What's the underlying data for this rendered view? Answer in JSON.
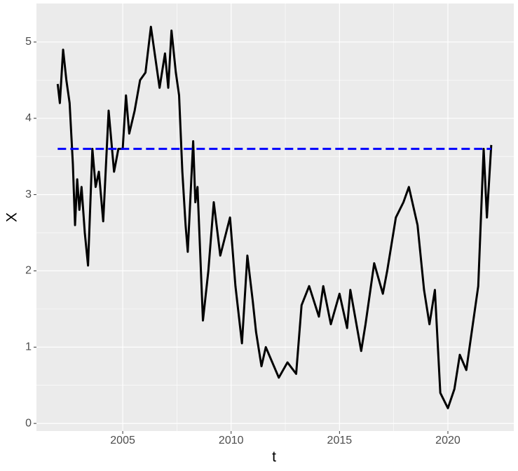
{
  "chart_data": {
    "type": "line",
    "x_label": "t",
    "y_label": "X",
    "xlim": [
      2001.02,
      2023.04
    ],
    "ylim": [
      -0.1,
      5.505
    ],
    "xticks": [
      2005,
      2010,
      2015,
      2020
    ],
    "yticks": [
      0,
      1,
      2,
      3,
      4,
      5
    ],
    "grid": true,
    "series": [
      {
        "color": "#000000",
        "dash": false,
        "x": [
          2002.0,
          2002.1,
          2002.25,
          2002.4,
          2002.55,
          2002.7,
          2002.8,
          2002.9,
          2003.0,
          2003.1,
          2003.25,
          2003.4,
          2003.6,
          2003.75,
          2003.9,
          2004.1,
          2004.35,
          2004.6,
          2004.8,
          2005.0,
          2005.15,
          2005.3,
          2005.55,
          2005.8,
          2006.05,
          2006.3,
          2006.5,
          2006.7,
          2006.95,
          2007.1,
          2007.25,
          2007.45,
          2007.6,
          2007.75,
          2007.9,
          2008.0,
          2008.25,
          2008.35,
          2008.45,
          2008.7,
          2008.95,
          2009.2,
          2009.5,
          2009.95,
          2010.2,
          2010.5,
          2010.75,
          2011.0,
          2011.15,
          2011.4,
          2011.6,
          2011.9,
          2012.2,
          2012.6,
          2013.0,
          2013.25,
          2013.6,
          2014.05,
          2014.25,
          2014.6,
          2015.0,
          2015.35,
          2015.5,
          2016.0,
          2016.2,
          2016.6,
          2017.0,
          2017.2,
          2017.6,
          2017.95,
          2018.2,
          2018.6,
          2018.9,
          2019.15,
          2019.4,
          2019.65,
          2020.0,
          2020.3,
          2020.55,
          2020.85,
          2021.1,
          2021.4,
          2021.65,
          2021.8,
          2022.0
        ],
        "values": [
          4.45,
          4.2,
          4.9,
          4.5,
          4.2,
          3.4,
          2.6,
          3.2,
          2.8,
          3.1,
          2.5,
          2.07,
          3.6,
          3.1,
          3.3,
          2.65,
          4.1,
          3.3,
          3.6,
          3.6,
          4.3,
          3.8,
          4.1,
          4.5,
          4.6,
          5.2,
          4.8,
          4.4,
          4.85,
          4.4,
          5.15,
          4.6,
          4.3,
          3.3,
          2.6,
          2.25,
          3.7,
          2.9,
          3.1,
          1.35,
          2.0,
          2.9,
          2.2,
          2.7,
          1.8,
          1.05,
          2.2,
          1.6,
          1.2,
          0.75,
          1.0,
          0.8,
          0.6,
          0.8,
          0.65,
          1.55,
          1.8,
          1.4,
          1.8,
          1.3,
          1.7,
          1.25,
          1.75,
          0.95,
          1.3,
          2.1,
          1.7,
          2.0,
          2.7,
          2.9,
          3.1,
          2.6,
          1.75,
          1.3,
          1.75,
          0.4,
          0.2,
          0.45,
          0.9,
          0.7,
          1.2,
          1.8,
          3.6,
          2.7,
          3.65
        ]
      },
      {
        "color": "#0000ff",
        "dash": true,
        "x": [
          2002.0,
          2022.0
        ],
        "values": [
          3.6,
          3.6
        ]
      }
    ]
  }
}
